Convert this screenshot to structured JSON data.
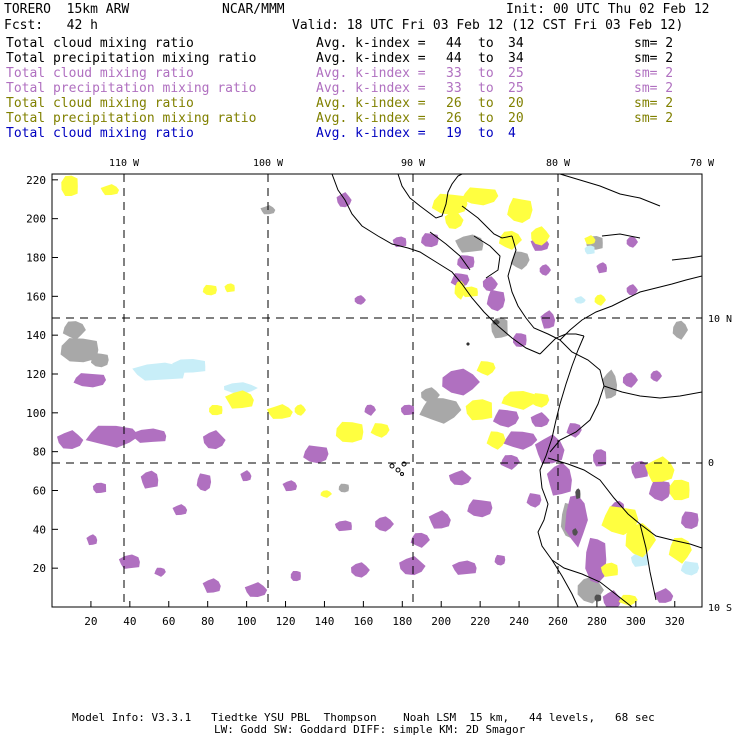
{
  "header": {
    "model": "TORERO  15km ARW",
    "org": "NCAR/MMM",
    "init": "Init: 00 UTC Thu 02 Feb 12",
    "fcst": "Fcst:   42 h",
    "valid": "Valid: 18 UTC Fri 03 Feb 12 (12 CST Fri 03 Feb 12)"
  },
  "legend": [
    {
      "field": "Total cloud mixing ratio",
      "index_label": "Avg. k-index =",
      "from": "44",
      "to_word": "to",
      "to": "34",
      "sm": "sm= 2",
      "color": "#000000"
    },
    {
      "field": "Total precipitation mixing ratio",
      "index_label": "Avg. k-index =",
      "from": "44",
      "to_word": "to",
      "to": "34",
      "sm": "sm= 2",
      "color": "#000000"
    },
    {
      "field": "Total cloud mixing ratio",
      "index_label": "Avg. k-index =",
      "from": "33",
      "to_word": "to",
      "to": "25",
      "sm": "sm= 2",
      "color": "#b070c0"
    },
    {
      "field": "Total precipitation mixing ratio",
      "index_label": "Avg. k-index =",
      "from": "33",
      "to_word": "to",
      "to": "25",
      "sm": "sm= 2",
      "color": "#b070c0"
    },
    {
      "field": "Total cloud mixing ratio",
      "index_label": "Avg. k-index =",
      "from": "26",
      "to_word": "to",
      "to": "20",
      "sm": "sm= 2",
      "color": "#808000"
    },
    {
      "field": "Total precipitation mixing ratio",
      "index_label": "Avg. k-index =",
      "from": "26",
      "to_word": "to",
      "to": "20",
      "sm": "sm= 2",
      "color": "#808000"
    },
    {
      "field": "Total cloud mixing ratio",
      "index_label": "Avg. k-index =",
      "from": "19",
      "to_word": "to",
      "to": "4",
      "sm": "",
      "color": "#0000c0"
    }
  ],
  "map": {
    "lon_labels": [
      "110 W",
      "100 W",
      "90 W",
      "80 W",
      "70 W"
    ],
    "lat_labels": [
      "10 N",
      "0",
      "10 S"
    ],
    "x_ticks": [
      "20",
      "40",
      "60",
      "80",
      "100",
      "120",
      "140",
      "160",
      "180",
      "200",
      "220",
      "240",
      "260",
      "280",
      "300",
      "320"
    ],
    "y_ticks": [
      "20",
      "40",
      "60",
      "80",
      "100",
      "120",
      "140",
      "160",
      "180",
      "200",
      "220"
    ],
    "colors": {
      "gray": "#a8a8a8",
      "purple": "#b070c0",
      "yellow": "#ffff40",
      "lightblue": "#c8eef8",
      "dark": "#505050",
      "frame": "#000000"
    }
  },
  "footer": {
    "line1": "Model Info: V3.3.1   Tiedtke YSU PBL  Thompson    Noah LSM  15 km,   44 levels,   68 sec",
    "line2": "LW: Godd SW: Goddard DIFF: simple KM: 2D Smagor"
  }
}
